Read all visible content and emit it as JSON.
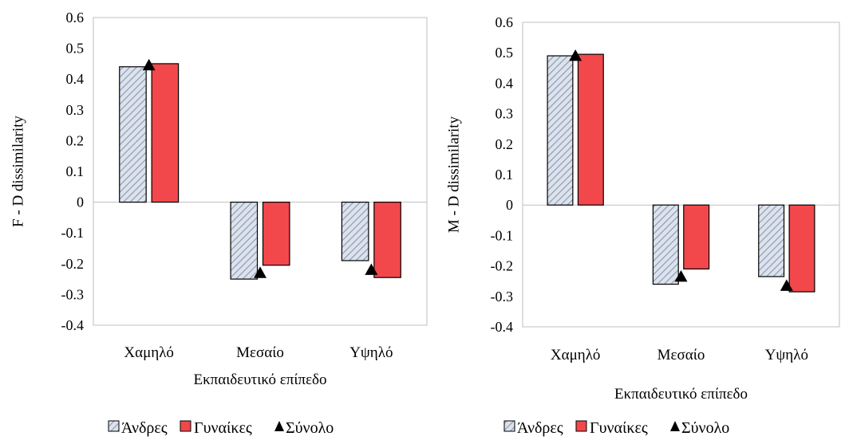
{
  "legend": {
    "men": "Άνδρες",
    "women": "Γυναίκες",
    "total": "Σύνολο"
  },
  "colors": {
    "men_hatch_fill": "#dde3ec",
    "men_hatch_stroke": "#8e9bb5",
    "women": "#f2484b",
    "total": "#000000",
    "gridline": "#d9d9d9",
    "axis": "#bfbfbf"
  },
  "chart_data": [
    {
      "type": "bar",
      "ylabel": "F - D dissimilarity",
      "xlabel": "Εκπαιδευτικό επίπεδο",
      "categories": [
        "Χαμηλό",
        "Μεσαίο",
        "Υψηλό"
      ],
      "ylim": [
        -0.4,
        0.6
      ],
      "yticks": [
        "0.6",
        "0.5",
        "0.4",
        "0.3",
        "0.2",
        "0.1",
        "0",
        "-0.1",
        "-0.2",
        "-0.3",
        "-0.4"
      ],
      "grid": false,
      "legend_position": "bottom",
      "series": [
        {
          "name": "Άνδρες",
          "kind": "bar",
          "values": [
            0.44,
            -0.25,
            -0.19
          ]
        },
        {
          "name": "Γυναίκες",
          "kind": "bar",
          "values": [
            0.45,
            -0.205,
            -0.245
          ]
        },
        {
          "name": "Σύνολο",
          "kind": "marker",
          "values": [
            0.445,
            -0.23,
            -0.22
          ]
        }
      ]
    },
    {
      "type": "bar",
      "ylabel": "M - D dissimilarity",
      "xlabel": "Εκπαιδευτικό επίπεδο",
      "categories": [
        "Χαμηλό",
        "Μεσαίο",
        "Υψηλό"
      ],
      "ylim": [
        -0.4,
        0.6
      ],
      "yticks": [
        "0.6",
        "0.5",
        "0.4",
        "0.3",
        "0.2",
        "0.1",
        "0",
        "-0.1",
        "-0.2",
        "-0.3",
        "-0.4"
      ],
      "grid": false,
      "legend_position": "bottom",
      "series": [
        {
          "name": "Άνδρες",
          "kind": "bar",
          "values": [
            0.49,
            -0.26,
            -0.235
          ]
        },
        {
          "name": "Γυναίκες",
          "kind": "bar",
          "values": [
            0.495,
            -0.21,
            -0.285
          ]
        },
        {
          "name": "Σύνολο",
          "kind": "marker",
          "values": [
            0.49,
            -0.235,
            -0.265
          ]
        }
      ]
    }
  ]
}
